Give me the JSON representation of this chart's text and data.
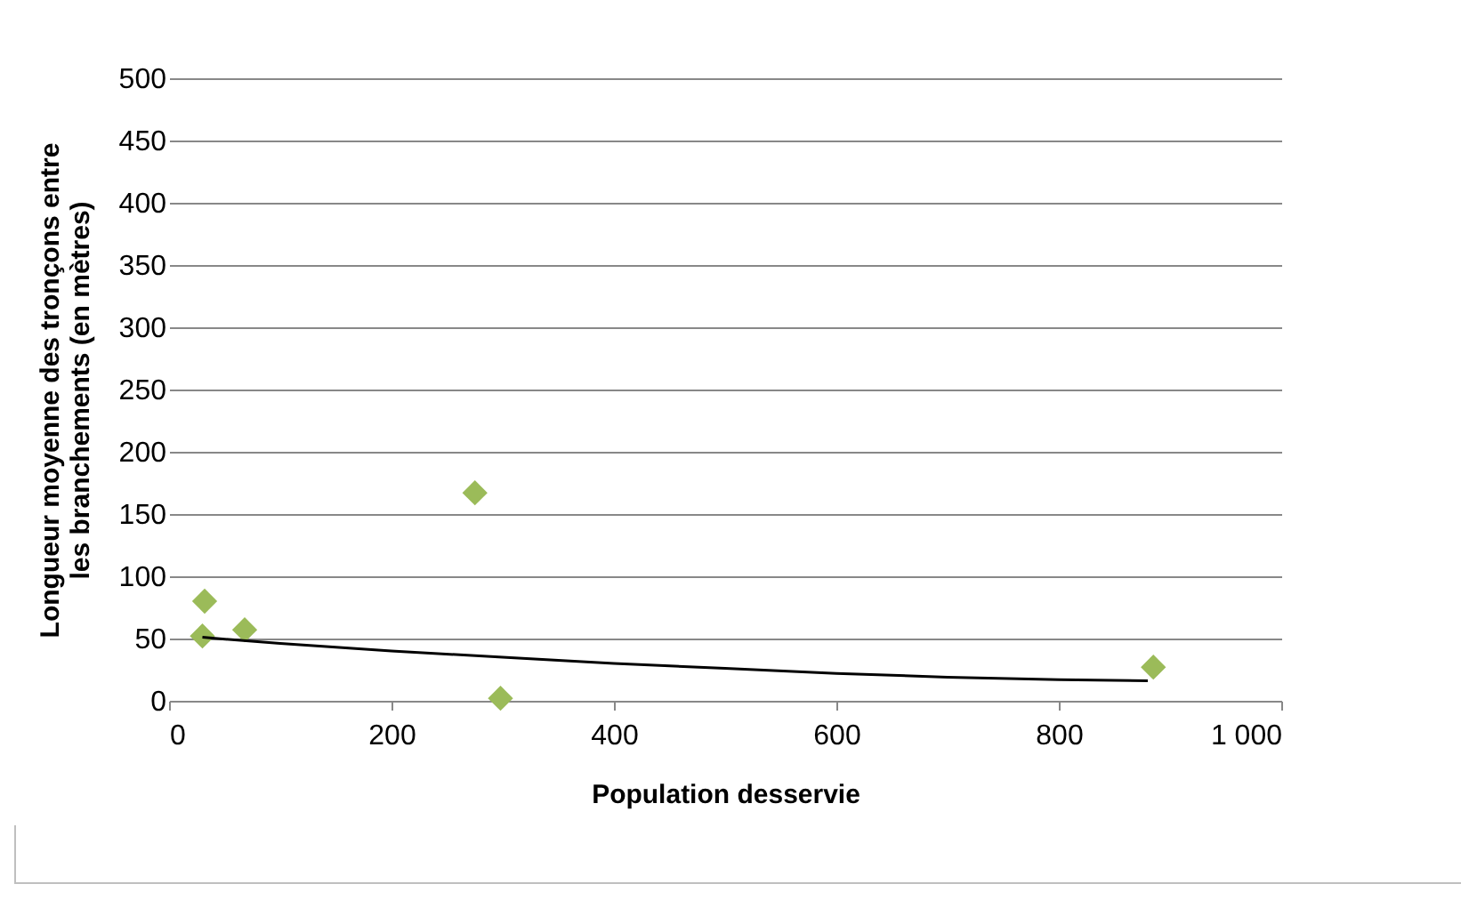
{
  "chart_data": {
    "type": "scatter",
    "xlabel": "Population desservie",
    "ylabel": "Longueur moyenne des tronçons entre\nles branchements (en mètres)",
    "series": [
      {
        "type": "scatter",
        "color": "#9bbb59",
        "marker": "diamond",
        "x": [
          32,
          30,
          68,
          275,
          298,
          885
        ],
        "values": [
          80,
          52,
          57,
          167,
          2,
          27
        ]
      },
      {
        "type": "line",
        "color": "#000000",
        "marker": "none",
        "x": [
          30,
          100,
          200,
          300,
          400,
          500,
          600,
          700,
          800,
          880
        ],
        "values": [
          51,
          46,
          40,
          35,
          30,
          26,
          22,
          19,
          17,
          16
        ]
      }
    ],
    "xlim": [
      0,
      1000
    ],
    "xticks": [
      0,
      200,
      400,
      600,
      800,
      {
        "value": 1000,
        "label": "1 000"
      }
    ],
    "ylim": [
      0,
      500
    ],
    "yticks": [
      0,
      50,
      100,
      150,
      200,
      250,
      300,
      350,
      400,
      450,
      500
    ],
    "grid": "y",
    "legend": false
  }
}
